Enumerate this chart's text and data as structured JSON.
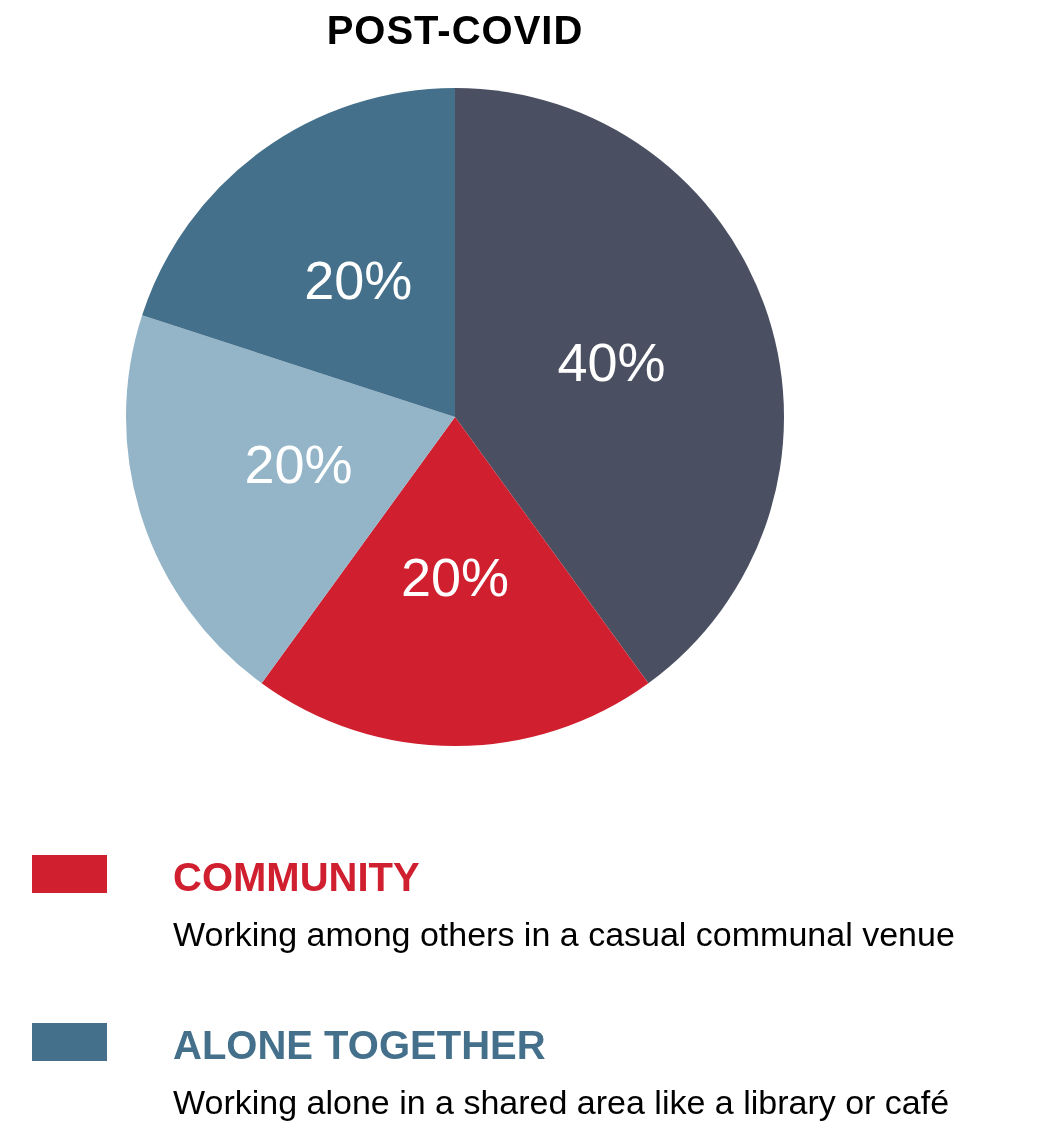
{
  "chart_data": {
    "type": "pie",
    "title": "POST-COVID",
    "categories": [
      null,
      "COMMUNITY",
      null,
      "ALONE TOGETHER"
    ],
    "values": [
      40,
      20,
      20,
      20
    ],
    "colors": [
      "#4a5061",
      "#d01f2f",
      "#94b5c8",
      "#44708b"
    ],
    "value_labels": [
      "40%",
      "20%",
      "20%",
      "20%"
    ],
    "legend": "bottom",
    "annotations": [
      "Working among others in a casual communal venue",
      "Working alone in a shared area like a library or café"
    ]
  }
}
